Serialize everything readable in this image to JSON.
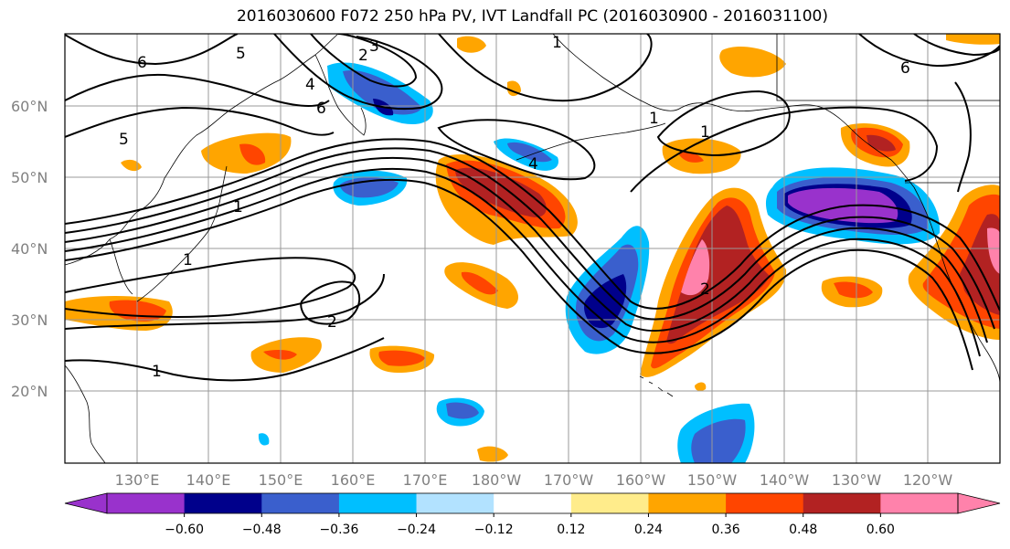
{
  "title": "2016030600 F072 250 hPa PV, IVT Landfall PC (2016030900 - 2016031100)",
  "map": {
    "lat_labels": [
      "60°N",
      "50°N",
      "40°N",
      "30°N",
      "20°N"
    ],
    "lon_labels": [
      "130°E",
      "140°E",
      "150°E",
      "160°E",
      "170°E",
      "180°W",
      "170°W",
      "160°W",
      "150°W",
      "140°W",
      "130°W",
      "120°W"
    ],
    "contour_labels": [
      "6",
      "5",
      "4",
      "3",
      "2",
      "6",
      "1",
      "5",
      "4",
      "1",
      "1",
      "2",
      "1",
      "2",
      "1",
      "6",
      "1"
    ]
  },
  "colorbar": {
    "tick_labels": [
      "−0.60",
      "−0.48",
      "−0.36",
      "−0.24",
      "−0.12",
      "0.12",
      "0.24",
      "0.36",
      "0.48",
      "0.60"
    ],
    "colors": [
      "#9932cc",
      "#00008b",
      "#3a5fcd",
      "#00bfff",
      "#b2e2ff",
      "#ffffff",
      "#ffec8b",
      "#ffa500",
      "#ff4500",
      "#b22222",
      "#ff82ab"
    ]
  }
}
